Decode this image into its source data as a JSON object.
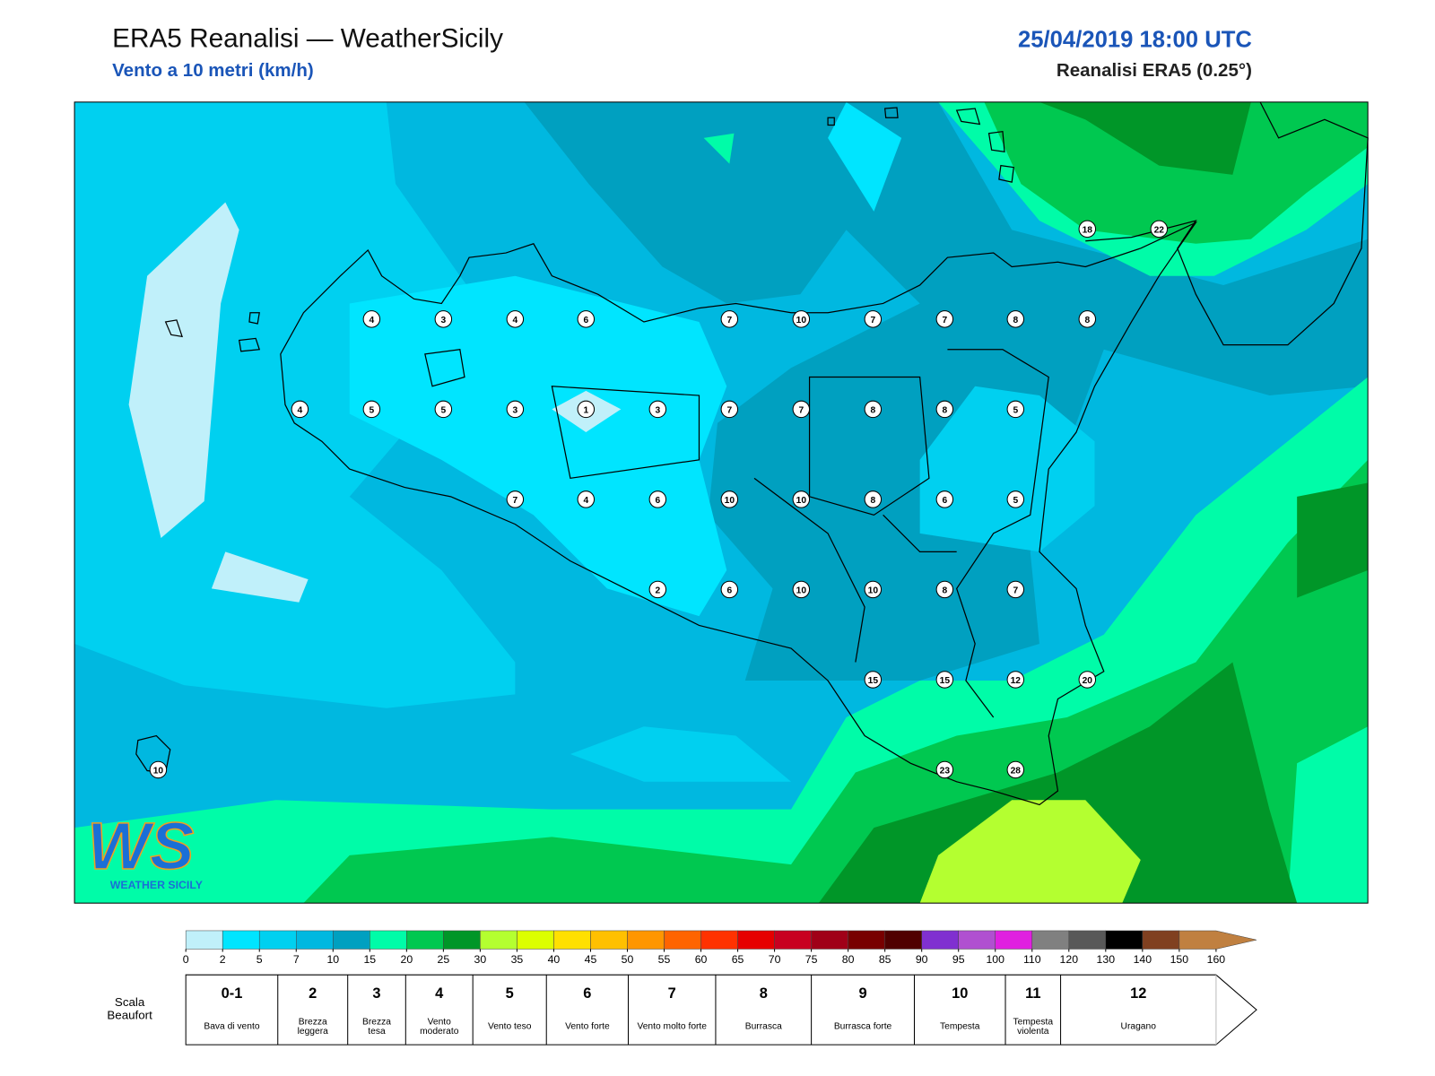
{
  "header": {
    "title": "ERA5 Reanalisi — WeatherSicily",
    "subtitle": "Vento a 10 metri (km/h)",
    "datetime": "25/04/2019 18:00 UTC",
    "source": "Reanalisi ERA5 (0.25°)"
  },
  "logo": {
    "mark": "WS",
    "name": "WEATHER SICILY"
  },
  "map": {
    "wind_labels": [
      4,
      3,
      4,
      6,
      7,
      10,
      7,
      7,
      8,
      8,
      4,
      5,
      5,
      3,
      1,
      3,
      7,
      7,
      8,
      8,
      5,
      7,
      4,
      6,
      10,
      10,
      8,
      6,
      5,
      2,
      6,
      10,
      10,
      8,
      7,
      15,
      15,
      12,
      20,
      23,
      28,
      18,
      22,
      10
    ]
  },
  "colorbar": {
    "ticks": [
      0,
      2,
      5,
      7,
      10,
      15,
      20,
      25,
      30,
      35,
      40,
      45,
      50,
      55,
      60,
      65,
      70,
      75,
      80,
      85,
      90,
      95,
      100,
      110,
      120,
      130,
      140,
      150,
      160
    ],
    "colors": [
      "#c0f0fa",
      "#00e5ff",
      "#00d0f0",
      "#00b8e0",
      "#00a0c0",
      "#00fca8",
      "#00c850",
      "#009628",
      "#b4ff30",
      "#dcff00",
      "#ffe000",
      "#ffc000",
      "#ff9600",
      "#ff6400",
      "#ff3200",
      "#e60000",
      "#c80020",
      "#a00018",
      "#780000",
      "#500000",
      "#8030d0",
      "#b050d0",
      "#e020e0",
      "#808080",
      "#585858",
      "#000000",
      "#804020",
      "#c08040"
    ]
  },
  "beaufort": {
    "title": "Scala Beaufort",
    "levels": [
      {
        "force": "0-1",
        "label": "Bava di vento"
      },
      {
        "force": "2",
        "label": "Brezza leggera"
      },
      {
        "force": "3",
        "label": "Brezza tesa"
      },
      {
        "force": "4",
        "label": "Vento moderato"
      },
      {
        "force": "5",
        "label": "Vento teso"
      },
      {
        "force": "6",
        "label": "Vento forte"
      },
      {
        "force": "7",
        "label": "Vento molto forte"
      },
      {
        "force": "8",
        "label": "Burrasca"
      },
      {
        "force": "9",
        "label": "Burrasca forte"
      },
      {
        "force": "10",
        "label": "Tempesta"
      },
      {
        "force": "11",
        "label": "Tempesta violenta"
      },
      {
        "force": "12",
        "label": "Uragano"
      }
    ]
  }
}
